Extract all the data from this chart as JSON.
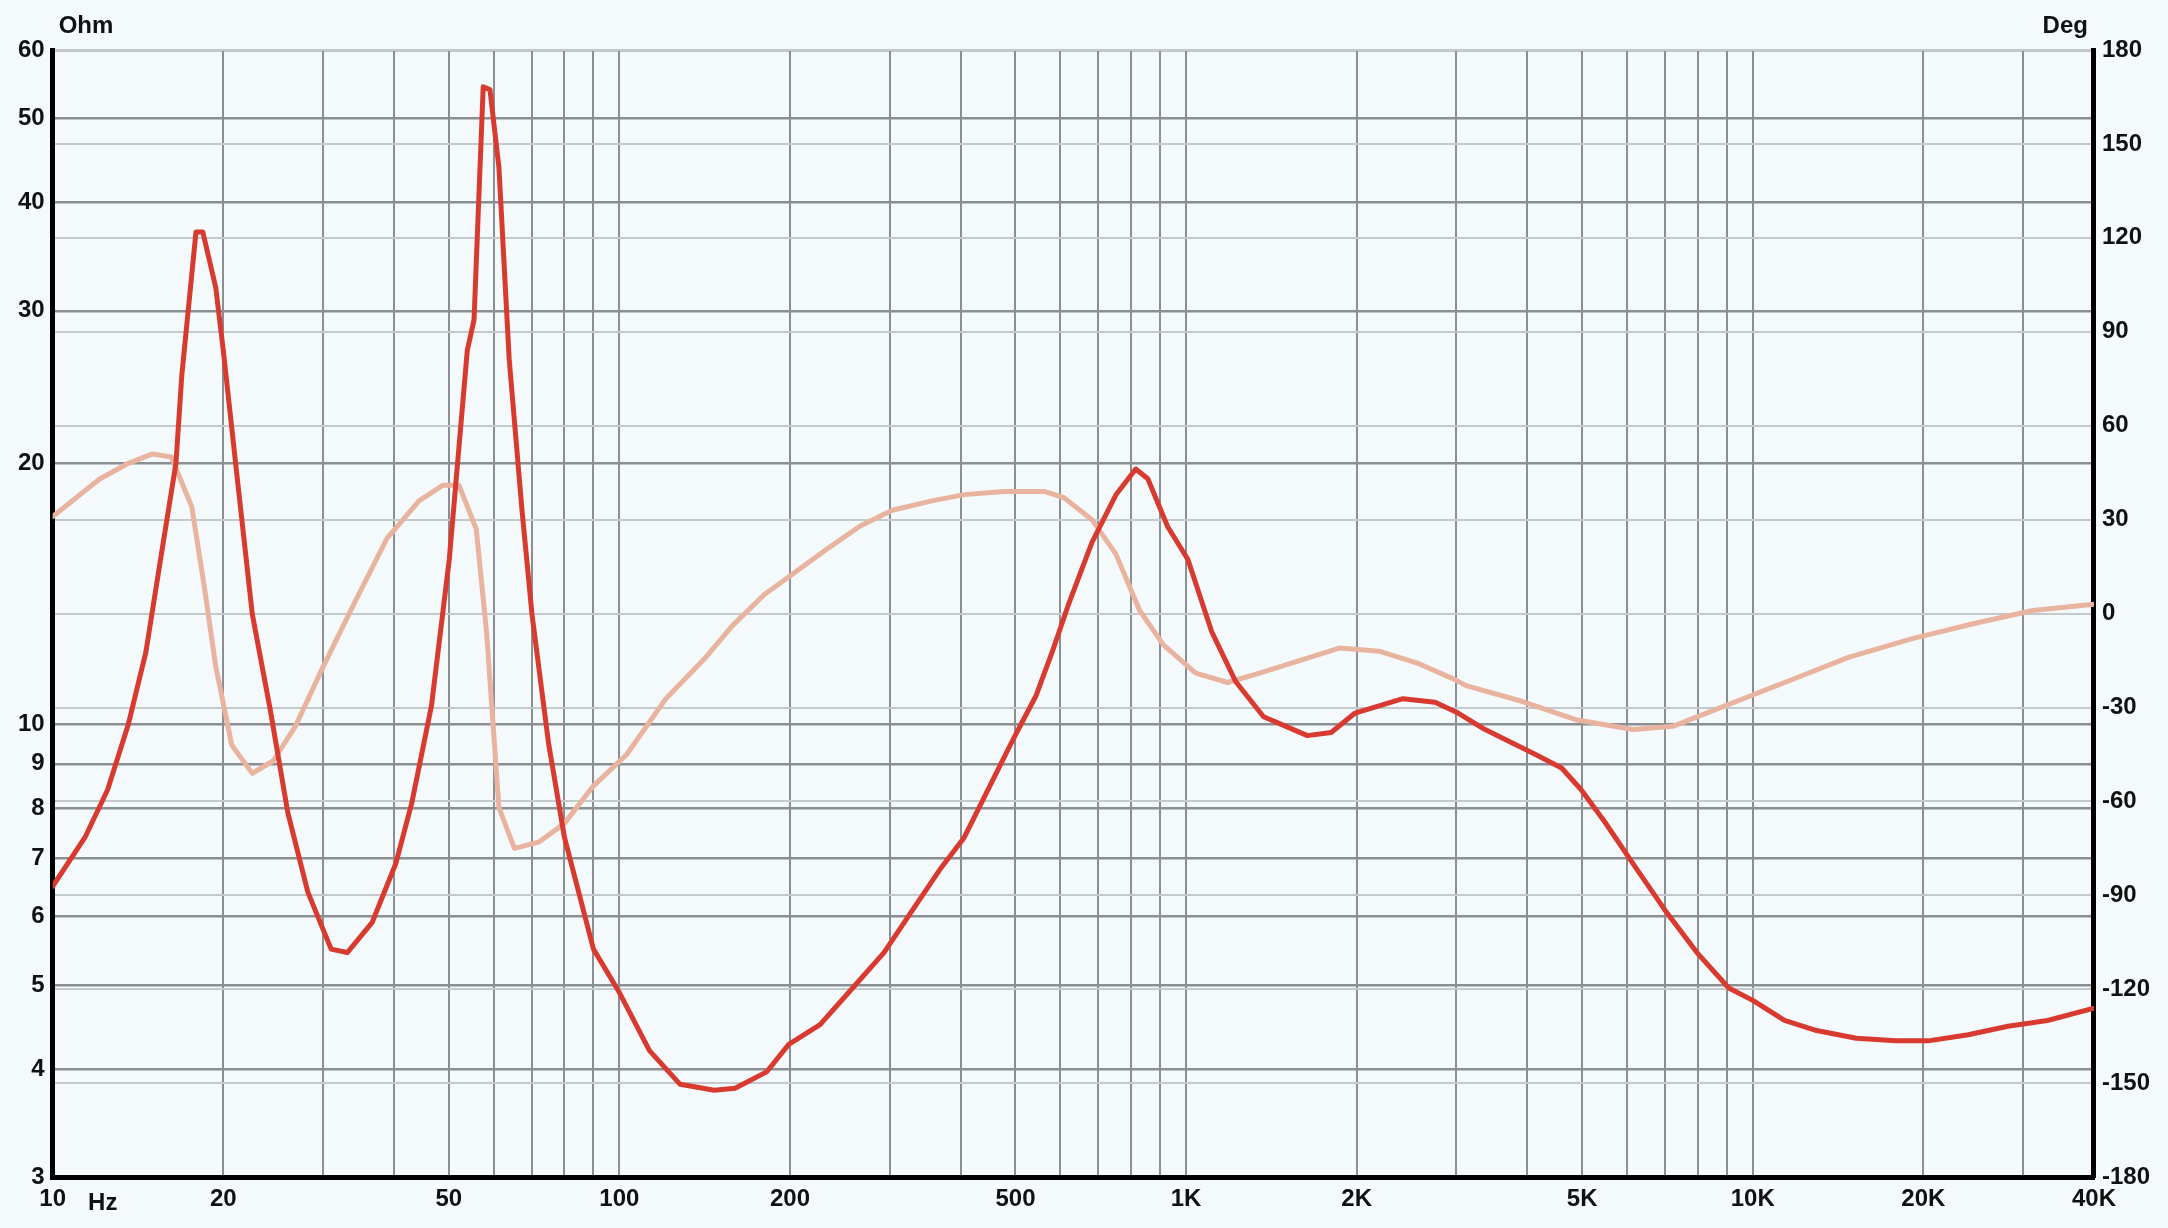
{
  "chart_data": {
    "type": "line",
    "ylabel": "Ohm",
    "y2label": "Deg",
    "xlabel": "Hz",
    "log": "xy",
    "grid": true,
    "legend": false,
    "marker": "none",
    "line_style": "solid",
    "xlim": [
      10,
      40000
    ],
    "xticks": [
      10,
      20,
      {
        "value": 30,
        "label": null
      },
      {
        "value": 40,
        "label": null
      },
      50,
      {
        "value": 60,
        "label": null
      },
      {
        "value": 70,
        "label": null
      },
      {
        "value": 80,
        "label": null
      },
      {
        "value": 90,
        "label": null
      },
      100,
      200,
      {
        "value": 300,
        "label": null
      },
      {
        "value": 400,
        "label": null
      },
      500,
      {
        "value": 600,
        "label": null
      },
      {
        "value": 700,
        "label": null
      },
      {
        "value": 800,
        "label": null
      },
      {
        "value": 900,
        "label": null
      },
      {
        "value": 1000,
        "label": "1K"
      },
      {
        "value": 2000,
        "label": "2K"
      },
      {
        "value": 3000,
        "label": null
      },
      {
        "value": 4000,
        "label": null
      },
      {
        "value": 5000,
        "label": "5K"
      },
      {
        "value": 6000,
        "label": null
      },
      {
        "value": 7000,
        "label": null
      },
      {
        "value": 8000,
        "label": null
      },
      {
        "value": 9000,
        "label": null
      },
      {
        "value": 10000,
        "label": "10K"
      },
      {
        "value": 20000,
        "label": "20K"
      },
      {
        "value": 30000,
        "label": null
      },
      {
        "value": 40000,
        "label": "40K"
      }
    ],
    "ylim": [
      3,
      60
    ],
    "yticks": [
      3,
      4,
      5,
      6,
      7,
      8,
      9,
      10,
      20,
      30,
      40,
      50,
      60
    ],
    "y2lim": [
      -180,
      180
    ],
    "y2ticks": [
      -180,
      -150,
      -120,
      -90,
      -60,
      -30,
      0,
      30,
      60,
      90,
      120,
      150,
      180
    ],
    "series": [
      {
        "color": "#d93a30",
        "x": [
          10,
          11.4,
          12.5,
          13.6,
          14.6,
          15.5,
          16.5,
          16.9,
          17.9,
          18.4,
          19.4,
          20,
          21.1,
          22.5,
          24.2,
          26,
          28.2,
          31,
          33.1,
          36.6,
          40.3,
          43,
          46.6,
          50.1,
          53.9,
          55.4,
          57.5,
          59.1,
          61.3,
          63.9,
          67.3,
          70.1,
          75,
          80,
          90,
          100,
          113,
          128,
          147,
          160,
          182,
          199,
          226,
          258,
          293,
          334,
          368,
          406,
          447,
          493,
          544,
          580,
          619,
          682,
          752,
          815,
          856,
          928,
          1007,
          1109,
          1223,
          1370,
          1637,
          1803,
          1987,
          2190,
          2414,
          2750,
          3020,
          3330,
          3780,
          4170,
          4600,
          4980,
          5490,
          6150,
          7000,
          7970,
          9070,
          10000,
          11380,
          12960,
          15230,
          17900,
          20400,
          24000,
          28200,
          33100,
          40000
        ],
        "values": [
          6.5,
          7.4,
          8.4,
          10.0,
          12.1,
          15.5,
          20.0,
          25.3,
          37,
          37,
          31.9,
          27,
          19.6,
          13.4,
          10.4,
          7.9,
          6.4,
          5.5,
          5.45,
          5.9,
          6.9,
          8.1,
          10.5,
          15.5,
          27,
          29.3,
          54.4,
          54,
          43.9,
          26.4,
          17.7,
          13.4,
          9.5,
          7.4,
          5.5,
          4.9,
          4.2,
          3.84,
          3.78,
          3.8,
          3.97,
          4.27,
          4.5,
          4.96,
          5.45,
          6.19,
          6.8,
          7.4,
          8.4,
          9.55,
          10.8,
          12.1,
          13.7,
          16.2,
          18.4,
          19.7,
          19.2,
          16.9,
          15.5,
          12.8,
          11.2,
          10.2,
          9.7,
          9.78,
          10.3,
          10.5,
          10.7,
          10.6,
          10.3,
          9.9,
          9.5,
          9.2,
          8.9,
          8.4,
          7.7,
          6.9,
          6.1,
          5.45,
          4.96,
          4.8,
          4.55,
          4.43,
          4.34,
          4.31,
          4.31,
          4.38,
          4.48,
          4.55,
          4.7
        ]
      },
      {
        "color": "#e8b49f",
        "axis": "y2",
        "x": [
          10,
          11,
          12.1,
          13.6,
          15,
          16.2,
          17.6,
          18.5,
          19.4,
          20.7,
          22.5,
          24.5,
          26.8,
          30,
          34.2,
          38.9,
          44.3,
          48.8,
          52.1,
          55.9,
          58.3,
          61.3,
          65.3,
          72,
          80,
          90,
          103,
          121,
          142,
          158,
          180,
          200,
          234,
          266,
          303,
          356,
          406,
          477,
          562,
          609,
          682,
          752,
          828,
          912,
          1040,
          1184,
          1348,
          1585,
          1864,
          2190,
          2575,
          2975,
          3120,
          3910,
          4900,
          6150,
          7230,
          8500,
          10000,
          12140,
          14750,
          19120,
          24800,
          31200,
          40000
        ],
        "values": [
          31,
          37,
          43,
          48,
          51,
          50,
          34,
          9,
          -17,
          -42,
          -51,
          -47,
          -36,
          -17,
          4,
          24,
          36,
          41,
          41,
          27,
          -6,
          -62,
          -75,
          -73,
          -67,
          -55,
          -45,
          -27,
          -14,
          -4,
          6,
          12,
          21,
          28,
          33,
          36,
          38,
          39,
          39,
          37,
          30,
          19,
          1,
          -10,
          -19,
          -22,
          -19,
          -15,
          -11,
          -12,
          -16,
          -21,
          -23,
          -28,
          -34,
          -37,
          -36,
          -31,
          -26,
          -20,
          -14,
          -8,
          -3,
          1,
          3
        ]
      }
    ]
  }
}
